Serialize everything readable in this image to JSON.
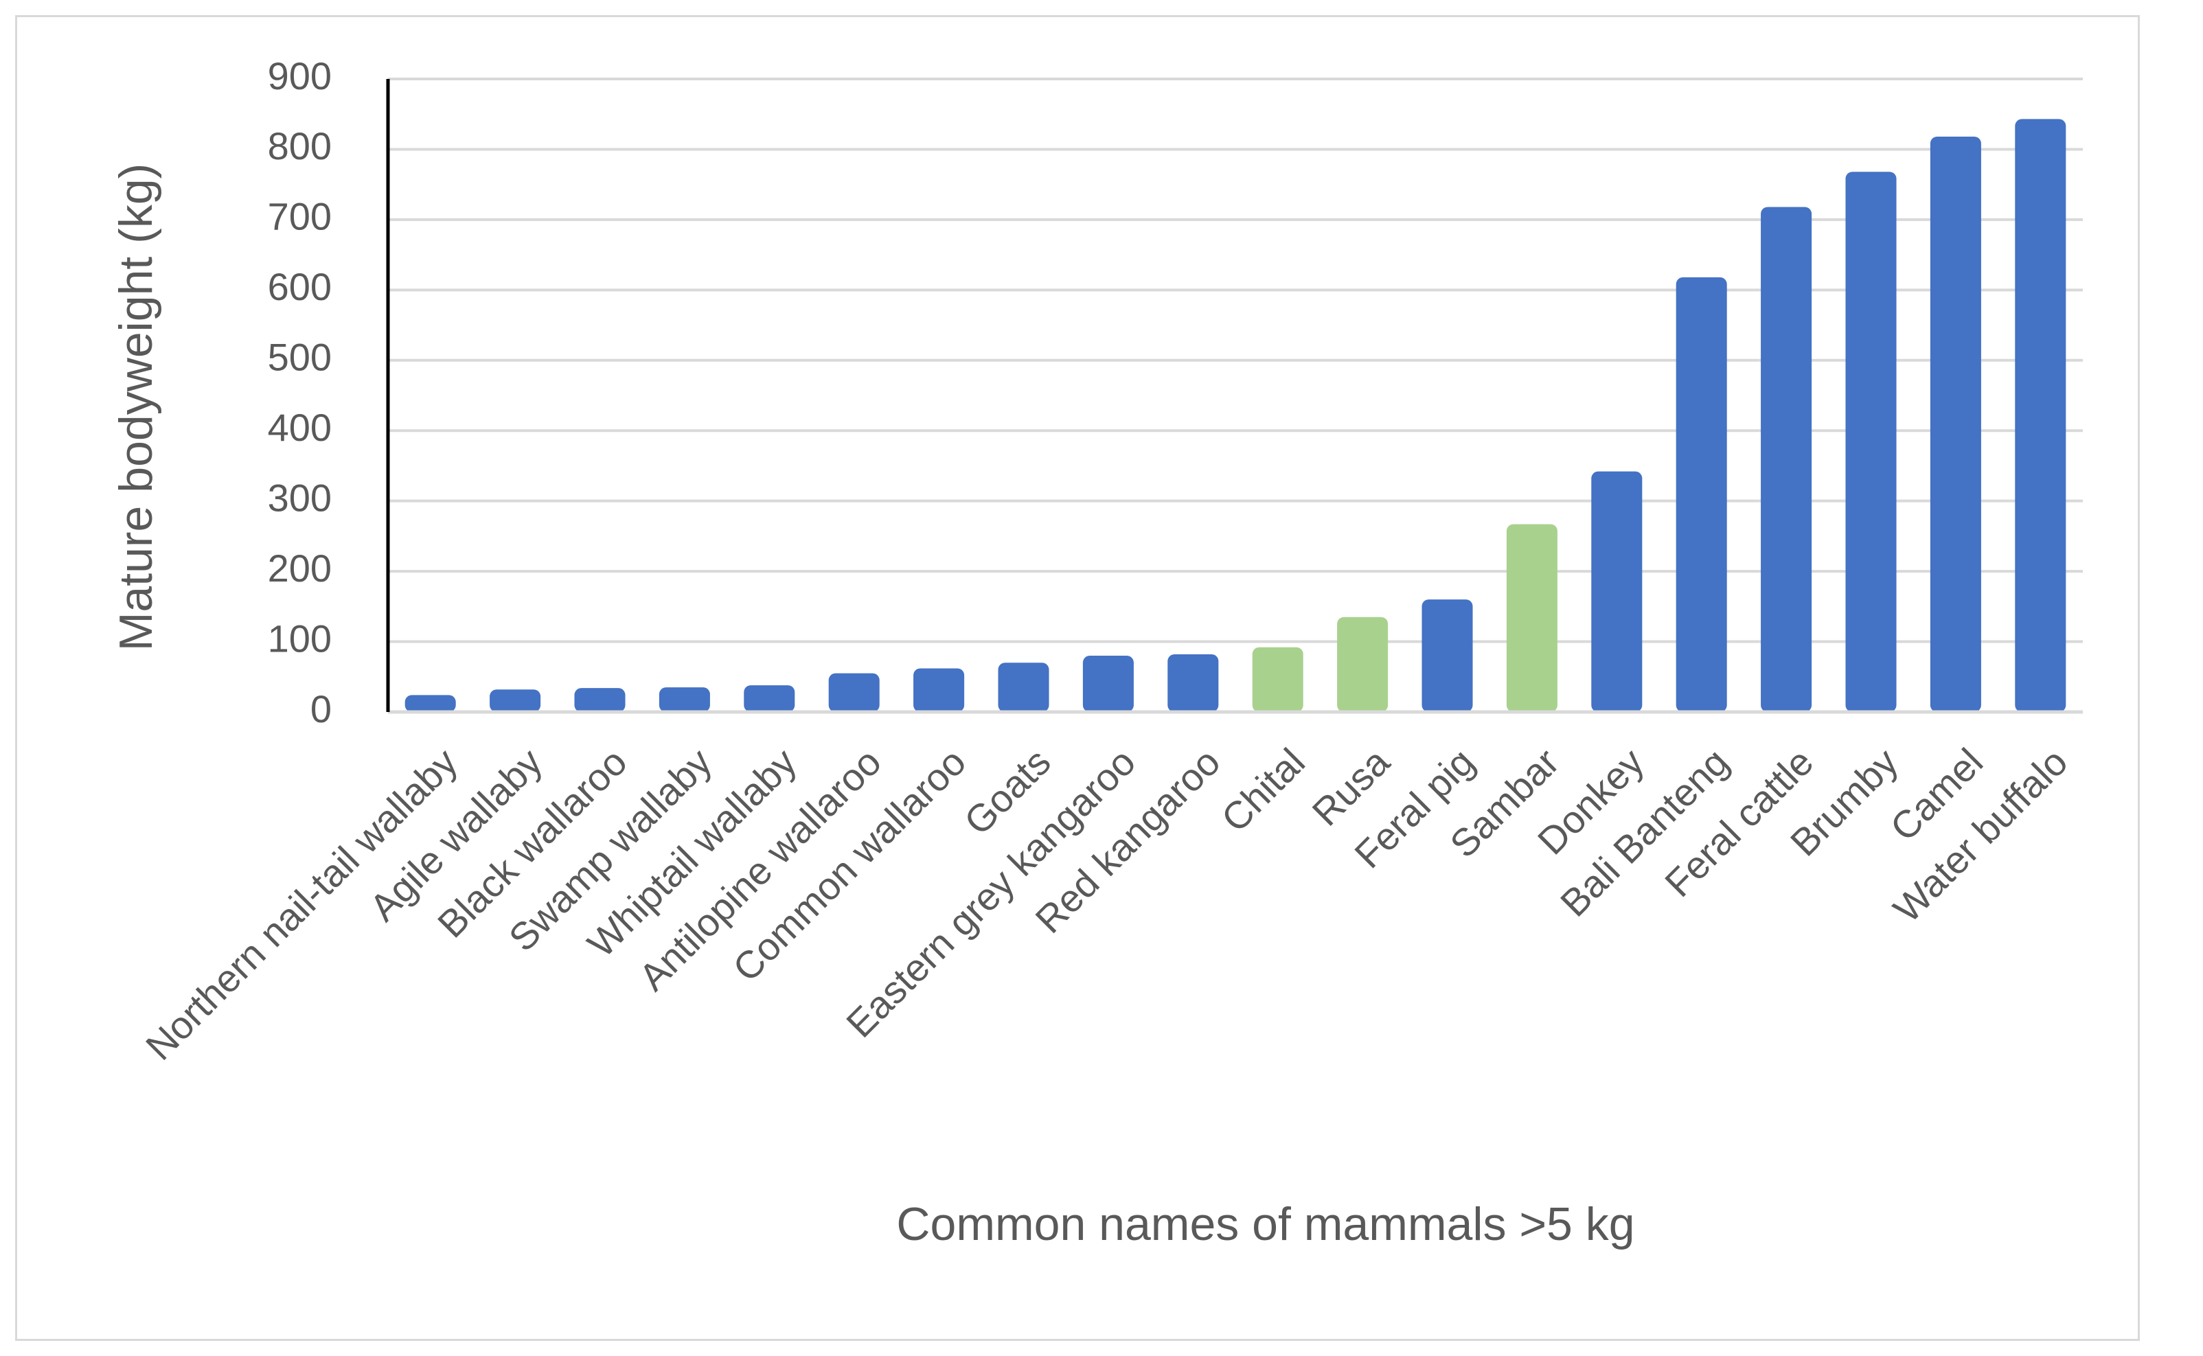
{
  "chart_data": {
    "type": "bar",
    "title": "",
    "xlabel": "Common names of mammals >5 kg",
    "ylabel": "Mature bodyweight (kg)",
    "ylim": [
      0,
      900
    ],
    "yticks": [
      0,
      100,
      200,
      300,
      400,
      500,
      600,
      700,
      800,
      900
    ],
    "grid": true,
    "legend": "none",
    "colors": {
      "native": "#4472c4",
      "highlight": "#a9d18e",
      "grid": "#d9d9d9",
      "axis": "#000000"
    },
    "categories": [
      "Northern nail-tail wallaby",
      "Agile wallaby",
      "Black wallaroo",
      "Swamp wallaby",
      "Whiptail wallaby",
      "Antilopine wallaroo",
      "Common wallaroo",
      "Goats",
      "Eastern grey kangaroo",
      "Red kangaroo",
      "Chital",
      "Rusa",
      "Feral pig",
      "Sambar",
      "Donkey",
      "Bali Banteng",
      "Feral cattle",
      "Brumby",
      "Camel",
      "Water buffalo"
    ],
    "values": [
      24,
      32,
      34,
      35,
      38,
      55,
      62,
      70,
      80,
      82,
      92,
      135,
      160,
      267,
      342,
      618,
      718,
      768,
      818,
      843
    ],
    "bar_colors": [
      "#4472c4",
      "#4472c4",
      "#4472c4",
      "#4472c4",
      "#4472c4",
      "#4472c4",
      "#4472c4",
      "#4472c4",
      "#4472c4",
      "#4472c4",
      "#a9d18e",
      "#a9d18e",
      "#4472c4",
      "#a9d18e",
      "#4472c4",
      "#4472c4",
      "#4472c4",
      "#4472c4",
      "#4472c4",
      "#4472c4"
    ]
  }
}
